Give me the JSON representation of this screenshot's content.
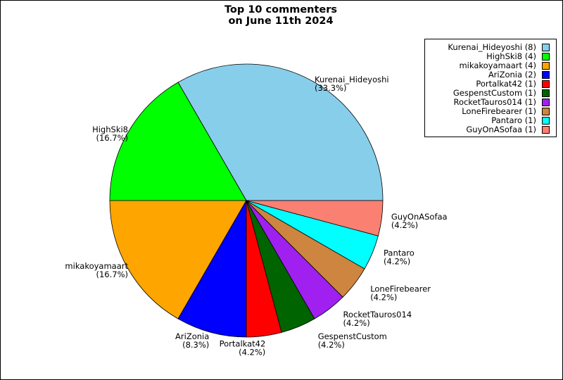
{
  "chart_data": {
    "type": "pie",
    "title_lines": [
      "Top 10 commenters",
      "on June 11th 2024"
    ],
    "start_angle": "0 degrees (3 o'clock), counter-clockwise",
    "legend_position": "top-right",
    "slices": [
      {
        "name": "Kurenai_Hideyoshi",
        "value": 8,
        "label": "Kurenai_Hideyoshi",
        "pct": "(33.3%)",
        "legend": "Kurenai_Hideyoshi (8)",
        "color": "#87ceeb"
      },
      {
        "name": "HighSki8",
        "value": 4,
        "label": "HighSki8",
        "pct": "(16.7%)",
        "legend": "HighSki8 (4)",
        "color": "#00ff00"
      },
      {
        "name": "mikakoyamaart",
        "value": 4,
        "label": "mikakoyamaart",
        "pct": "(16.7%)",
        "legend": "mikakoyamaart (4)",
        "color": "#ffa500"
      },
      {
        "name": "AriZonia",
        "value": 2,
        "label": "AriZonia",
        "pct": "(8.3%)",
        "legend": "AriZonia (2)",
        "color": "#0000ff"
      },
      {
        "name": "Portalkat42",
        "value": 1,
        "label": "Portalkat42",
        "pct": "(4.2%)",
        "legend": "Portalkat42 (1)",
        "color": "#ff0000"
      },
      {
        "name": "GespenstCustom",
        "value": 1,
        "label": "GespenstCustom",
        "pct": "(4.2%)",
        "legend": "GespenstCustom (1)",
        "color": "#006400"
      },
      {
        "name": "RocketTauros014",
        "value": 1,
        "label": "RocketTauros014",
        "pct": "(4.2%)",
        "legend": "RocketTauros014 (1)",
        "color": "#a020f0"
      },
      {
        "name": "LoneFirebearer",
        "value": 1,
        "label": "LoneFirebearer",
        "pct": "(4.2%)",
        "legend": "LoneFirebearer (1)",
        "color": "#cd853f"
      },
      {
        "name": "Pantaro",
        "value": 1,
        "label": "Pantaro",
        "pct": "(4.2%)",
        "legend": "Pantaro (1)",
        "color": "#00ffff"
      },
      {
        "name": "GuyOnASofaa",
        "value": 1,
        "label": "GuyOnASofaa",
        "pct": "(4.2%)",
        "legend": "GuyOnASofaa (1)",
        "color": "#fa8072"
      }
    ]
  }
}
